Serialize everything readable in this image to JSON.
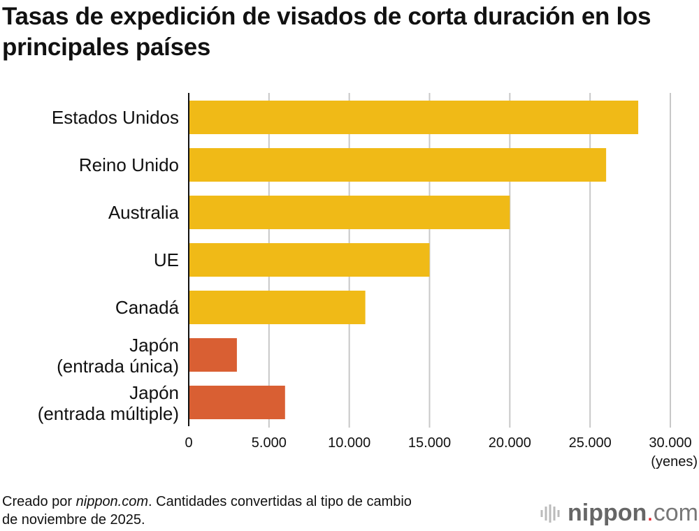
{
  "chart_data": {
    "type": "bar",
    "orientation": "horizontal",
    "title": "Tasas de expedición de visados de corta duración en los principales países",
    "categories": [
      "Estados Unidos",
      "Reino Unido",
      "Australia",
      "UE",
      "Canadá",
      "Japón\n(entrada única)",
      "Japón\n(entrada múltiple)"
    ],
    "category_lines": [
      [
        "Estados Unidos"
      ],
      [
        "Reino Unido"
      ],
      [
        "Australia"
      ],
      [
        "UE"
      ],
      [
        "Canadá"
      ],
      [
        "Japón",
        "(entrada única)"
      ],
      [
        "Japón",
        "(entrada múltiple)"
      ]
    ],
    "values": [
      28000,
      26000,
      20000,
      15000,
      11000,
      3000,
      6000
    ],
    "colors": [
      "#f0ba17",
      "#f0ba17",
      "#f0ba17",
      "#f0ba17",
      "#f0ba17",
      "#d95f33",
      "#d95f33"
    ],
    "xlim": [
      0,
      30000
    ],
    "x_ticks": [
      0,
      5000,
      10000,
      15000,
      20000,
      25000,
      30000
    ],
    "x_tick_labels": [
      "0",
      "5.000",
      "10.000",
      "15.000",
      "20.000",
      "25.000",
      "30.000"
    ],
    "xlabel": "(yenes)",
    "grid": true
  },
  "footer": {
    "prefix": "Creado por ",
    "site": "nippon.com",
    "rest": ". Cantidades convertidas al tipo de cambio",
    "line2": "de noviembre de 2025."
  },
  "logo": {
    "bold": "nippon",
    "dot": ".",
    "light": "com"
  }
}
